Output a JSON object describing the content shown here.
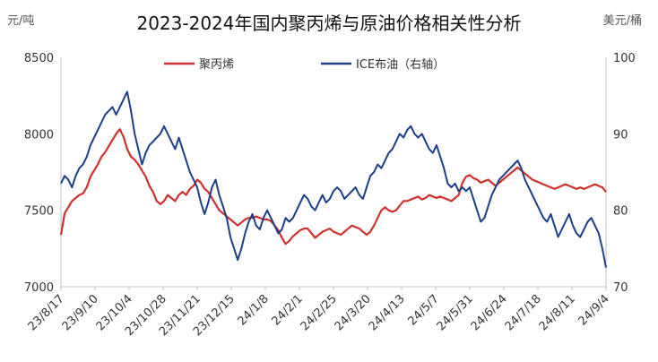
{
  "chart_data": {
    "type": "line",
    "title": "2023-2024年国内聚丙烯与原油价格相关性分析",
    "left_unit": "元/吨",
    "right_unit": "美元/桶",
    "ylim_left": [
      7000,
      8500
    ],
    "yticks_left": [
      7000,
      7500,
      8000,
      8500
    ],
    "ylim_right": [
      70,
      100
    ],
    "yticks_right": [
      70,
      80,
      90,
      100
    ],
    "x_tick_labels": [
      "23/8/17",
      "23/9/10",
      "23/10/4",
      "23/10/28",
      "23/11/21",
      "23/12/15",
      "24/1/8",
      "24/2/1",
      "24/2/25",
      "24/3/20",
      "24/4/13",
      "24/5/7",
      "24/5/31",
      "24/6/24",
      "24/7/18",
      "24/8/11",
      "24/9/4"
    ],
    "grid": false,
    "legend_position": "top",
    "series": [
      {
        "name": "聚丙烯",
        "axis": "left",
        "color": "#d0312d",
        "points": [
          [
            0,
            7340
          ],
          [
            1,
            7480
          ],
          [
            2,
            7520
          ],
          [
            3,
            7560
          ],
          [
            4,
            7580
          ],
          [
            5,
            7600
          ],
          [
            6,
            7610
          ],
          [
            7,
            7650
          ],
          [
            8,
            7720
          ],
          [
            9,
            7760
          ],
          [
            10,
            7800
          ],
          [
            11,
            7850
          ],
          [
            12,
            7880
          ],
          [
            13,
            7920
          ],
          [
            14,
            7960
          ],
          [
            15,
            8000
          ],
          [
            16,
            8030
          ],
          [
            17,
            7980
          ],
          [
            18,
            7900
          ],
          [
            19,
            7850
          ],
          [
            20,
            7830
          ],
          [
            21,
            7800
          ],
          [
            22,
            7760
          ],
          [
            23,
            7720
          ],
          [
            24,
            7660
          ],
          [
            25,
            7620
          ],
          [
            26,
            7560
          ],
          [
            27,
            7540
          ],
          [
            28,
            7560
          ],
          [
            29,
            7600
          ],
          [
            30,
            7580
          ],
          [
            31,
            7560
          ],
          [
            32,
            7600
          ],
          [
            33,
            7620
          ],
          [
            34,
            7600
          ],
          [
            35,
            7640
          ],
          [
            36,
            7660
          ],
          [
            37,
            7700
          ],
          [
            38,
            7680
          ],
          [
            39,
            7640
          ],
          [
            40,
            7620
          ],
          [
            41,
            7580
          ],
          [
            42,
            7540
          ],
          [
            43,
            7500
          ],
          [
            44,
            7480
          ],
          [
            45,
            7460
          ],
          [
            46,
            7440
          ],
          [
            47,
            7420
          ],
          [
            48,
            7400
          ],
          [
            49,
            7420
          ],
          [
            50,
            7440
          ],
          [
            51,
            7450
          ],
          [
            52,
            7450
          ],
          [
            53,
            7460
          ],
          [
            54,
            7450
          ],
          [
            55,
            7440
          ],
          [
            56,
            7440
          ],
          [
            57,
            7430
          ],
          [
            58,
            7400
          ],
          [
            59,
            7370
          ],
          [
            60,
            7320
          ],
          [
            61,
            7280
          ],
          [
            62,
            7300
          ],
          [
            63,
            7330
          ],
          [
            64,
            7350
          ],
          [
            65,
            7370
          ],
          [
            66,
            7380
          ],
          [
            67,
            7380
          ],
          [
            68,
            7350
          ],
          [
            69,
            7320
          ],
          [
            70,
            7340
          ],
          [
            71,
            7360
          ],
          [
            72,
            7370
          ],
          [
            73,
            7380
          ],
          [
            74,
            7360
          ],
          [
            75,
            7350
          ],
          [
            76,
            7340
          ],
          [
            77,
            7360
          ],
          [
            78,
            7380
          ],
          [
            79,
            7400
          ],
          [
            80,
            7390
          ],
          [
            81,
            7380
          ],
          [
            82,
            7360
          ],
          [
            83,
            7340
          ],
          [
            84,
            7360
          ],
          [
            85,
            7400
          ],
          [
            86,
            7450
          ],
          [
            87,
            7500
          ],
          [
            88,
            7520
          ],
          [
            89,
            7500
          ],
          [
            90,
            7490
          ],
          [
            91,
            7500
          ],
          [
            92,
            7530
          ],
          [
            93,
            7560
          ],
          [
            94,
            7560
          ],
          [
            95,
            7570
          ],
          [
            96,
            7580
          ],
          [
            97,
            7590
          ],
          [
            98,
            7570
          ],
          [
            99,
            7580
          ],
          [
            100,
            7600
          ],
          [
            101,
            7590
          ],
          [
            102,
            7580
          ],
          [
            103,
            7590
          ],
          [
            104,
            7580
          ],
          [
            105,
            7570
          ],
          [
            106,
            7560
          ],
          [
            107,
            7580
          ],
          [
            108,
            7600
          ],
          [
            109,
            7680
          ],
          [
            110,
            7720
          ],
          [
            111,
            7730
          ],
          [
            112,
            7710
          ],
          [
            113,
            7700
          ],
          [
            114,
            7680
          ],
          [
            115,
            7690
          ],
          [
            116,
            7700
          ],
          [
            117,
            7680
          ],
          [
            118,
            7660
          ],
          [
            119,
            7680
          ],
          [
            120,
            7700
          ],
          [
            121,
            7720
          ],
          [
            122,
            7740
          ],
          [
            123,
            7760
          ],
          [
            124,
            7780
          ],
          [
            125,
            7760
          ],
          [
            126,
            7740
          ],
          [
            127,
            7720
          ],
          [
            128,
            7700
          ],
          [
            129,
            7690
          ],
          [
            130,
            7680
          ],
          [
            131,
            7670
          ],
          [
            132,
            7660
          ],
          [
            133,
            7650
          ],
          [
            134,
            7640
          ],
          [
            135,
            7650
          ],
          [
            136,
            7660
          ],
          [
            137,
            7670
          ],
          [
            138,
            7660
          ],
          [
            139,
            7650
          ],
          [
            140,
            7640
          ],
          [
            141,
            7650
          ],
          [
            142,
            7640
          ],
          [
            143,
            7650
          ],
          [
            144,
            7660
          ],
          [
            145,
            7670
          ],
          [
            146,
            7660
          ],
          [
            147,
            7650
          ],
          [
            148,
            7620
          ]
        ]
      },
      {
        "name": "ICE布油（右轴）",
        "axis": "right",
        "color": "#1b3f8b",
        "points": [
          [
            0,
            83.5
          ],
          [
            1,
            84.5
          ],
          [
            2,
            84.0
          ],
          [
            3,
            83.0
          ],
          [
            4,
            84.5
          ],
          [
            5,
            85.5
          ],
          [
            6,
            86.0
          ],
          [
            7,
            87.0
          ],
          [
            8,
            88.5
          ],
          [
            9,
            89.5
          ],
          [
            10,
            90.5
          ],
          [
            11,
            91.5
          ],
          [
            12,
            92.5
          ],
          [
            13,
            93.0
          ],
          [
            14,
            93.5
          ],
          [
            15,
            92.5
          ],
          [
            16,
            93.5
          ],
          [
            17,
            94.5
          ],
          [
            18,
            95.5
          ],
          [
            19,
            93.0
          ],
          [
            20,
            90.0
          ],
          [
            21,
            88.0
          ],
          [
            22,
            86.0
          ],
          [
            23,
            87.5
          ],
          [
            24,
            88.5
          ],
          [
            25,
            89.0
          ],
          [
            26,
            89.5
          ],
          [
            27,
            90.0
          ],
          [
            28,
            91.0
          ],
          [
            29,
            90.0
          ],
          [
            30,
            89.0
          ],
          [
            31,
            88.0
          ],
          [
            32,
            89.5
          ],
          [
            33,
            88.0
          ],
          [
            34,
            86.5
          ],
          [
            35,
            85.0
          ],
          [
            36,
            84.0
          ],
          [
            37,
            83.0
          ],
          [
            38,
            81.0
          ],
          [
            39,
            79.5
          ],
          [
            40,
            81.0
          ],
          [
            41,
            83.0
          ],
          [
            42,
            84.0
          ],
          [
            43,
            82.0
          ],
          [
            44,
            80.5
          ],
          [
            45,
            79.0
          ],
          [
            46,
            76.5
          ],
          [
            47,
            75.0
          ],
          [
            48,
            73.5
          ],
          [
            49,
            75.0
          ],
          [
            50,
            77.0
          ],
          [
            51,
            78.5
          ],
          [
            52,
            79.5
          ],
          [
            53,
            78.0
          ],
          [
            54,
            77.5
          ],
          [
            55,
            79.0
          ],
          [
            56,
            80.0
          ],
          [
            57,
            79.0
          ],
          [
            58,
            78.0
          ],
          [
            59,
            77.0
          ],
          [
            60,
            77.5
          ],
          [
            61,
            79.0
          ],
          [
            62,
            78.5
          ],
          [
            63,
            79.0
          ],
          [
            64,
            80.0
          ],
          [
            65,
            81.0
          ],
          [
            66,
            82.0
          ],
          [
            67,
            81.5
          ],
          [
            68,
            80.5
          ],
          [
            69,
            80.0
          ],
          [
            70,
            81.0
          ],
          [
            71,
            82.0
          ],
          [
            72,
            81.0
          ],
          [
            73,
            81.5
          ],
          [
            74,
            82.5
          ],
          [
            75,
            83.0
          ],
          [
            76,
            82.5
          ],
          [
            77,
            81.5
          ],
          [
            78,
            82.0
          ],
          [
            79,
            82.5
          ],
          [
            80,
            83.0
          ],
          [
            81,
            82.0
          ],
          [
            82,
            81.5
          ],
          [
            83,
            83.0
          ],
          [
            84,
            84.5
          ],
          [
            85,
            85.0
          ],
          [
            86,
            86.0
          ],
          [
            87,
            85.5
          ],
          [
            88,
            86.5
          ],
          [
            89,
            87.5
          ],
          [
            90,
            88.0
          ],
          [
            91,
            89.0
          ],
          [
            92,
            90.0
          ],
          [
            93,
            89.5
          ],
          [
            94,
            90.5
          ],
          [
            95,
            91.0
          ],
          [
            96,
            90.0
          ],
          [
            97,
            89.5
          ],
          [
            98,
            90.0
          ],
          [
            99,
            89.0
          ],
          [
            100,
            88.0
          ],
          [
            101,
            87.5
          ],
          [
            102,
            88.5
          ],
          [
            103,
            87.0
          ],
          [
            104,
            85.5
          ],
          [
            105,
            83.5
          ],
          [
            106,
            83.0
          ],
          [
            107,
            83.5
          ],
          [
            108,
            82.5
          ],
          [
            109,
            83.0
          ],
          [
            110,
            82.5
          ],
          [
            111,
            83.0
          ],
          [
            112,
            81.5
          ],
          [
            113,
            80.0
          ],
          [
            114,
            78.5
          ],
          [
            115,
            79.0
          ],
          [
            116,
            80.5
          ],
          [
            117,
            82.0
          ],
          [
            118,
            83.0
          ],
          [
            119,
            84.0
          ],
          [
            120,
            84.5
          ],
          [
            121,
            85.0
          ],
          [
            122,
            85.5
          ],
          [
            123,
            86.0
          ],
          [
            124,
            86.5
          ],
          [
            125,
            85.5
          ],
          [
            126,
            84.0
          ],
          [
            127,
            83.0
          ],
          [
            128,
            82.0
          ],
          [
            129,
            81.0
          ],
          [
            130,
            80.0
          ],
          [
            131,
            79.0
          ],
          [
            132,
            78.5
          ],
          [
            133,
            79.5
          ],
          [
            134,
            78.0
          ],
          [
            135,
            76.5
          ],
          [
            136,
            77.5
          ],
          [
            137,
            78.5
          ],
          [
            138,
            79.5
          ],
          [
            139,
            78.0
          ],
          [
            140,
            77.0
          ],
          [
            141,
            76.5
          ],
          [
            142,
            77.5
          ],
          [
            143,
            78.5
          ],
          [
            144,
            79.0
          ],
          [
            145,
            78.0
          ],
          [
            146,
            77.0
          ],
          [
            147,
            75.0
          ],
          [
            148,
            72.5
          ]
        ]
      }
    ]
  }
}
